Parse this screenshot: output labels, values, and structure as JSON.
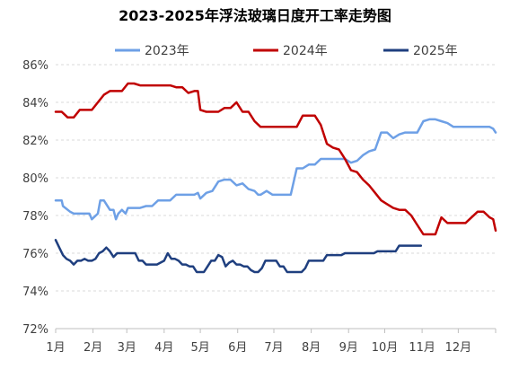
{
  "chart_data": {
    "type": "line",
    "title": "2023-2025年浮法玻璃日度开工率走势图",
    "xlabel": "",
    "ylabel": "",
    "ylim": [
      72,
      86
    ],
    "y_ticks": [
      "72%",
      "74%",
      "76%",
      "78%",
      "80%",
      "82%",
      "84%",
      "86%"
    ],
    "x_ticks": [
      "1月",
      "2月",
      "3月",
      "4月",
      "5月",
      "6月",
      "7月",
      "8月",
      "9月",
      "10月",
      "11月",
      "12月"
    ],
    "x_unit": "day_of_year",
    "x_lim": [
      0,
      365
    ],
    "legend_position": "top",
    "grid": "horizontal-dashed",
    "series": [
      {
        "name": "2023年",
        "color": "#6ea0e6",
        "x": [
          0,
          5,
          6,
          12,
          15,
          20,
          25,
          28,
          30,
          35,
          37,
          40,
          45,
          48,
          50,
          52,
          55,
          58,
          60,
          63,
          65,
          70,
          75,
          80,
          85,
          90,
          95,
          100,
          105,
          110,
          115,
          118,
          120,
          125,
          130,
          135,
          140,
          145,
          150,
          155,
          160,
          165,
          168,
          170,
          175,
          180,
          185,
          190,
          195,
          200,
          205,
          210,
          215,
          220,
          225,
          230,
          235,
          240,
          245,
          250,
          255,
          260,
          265,
          270,
          275,
          280,
          285,
          290,
          295,
          300,
          305,
          310,
          315,
          320,
          325,
          330,
          335,
          340,
          345,
          350,
          355,
          360,
          363,
          365
        ],
        "values": [
          78.8,
          78.8,
          78.5,
          78.2,
          78.1,
          78.1,
          78.1,
          78.1,
          77.8,
          78.1,
          78.8,
          78.8,
          78.3,
          78.3,
          77.8,
          78.1,
          78.3,
          78.1,
          78.4,
          78.4,
          78.4,
          78.4,
          78.5,
          78.5,
          78.8,
          78.8,
          78.8,
          79.1,
          79.1,
          79.1,
          79.1,
          79.2,
          78.9,
          79.2,
          79.3,
          79.8,
          79.9,
          79.9,
          79.6,
          79.7,
          79.4,
          79.3,
          79.1,
          79.1,
          79.3,
          79.1,
          79.1,
          79.1,
          79.1,
          80.5,
          80.5,
          80.7,
          80.7,
          81.0,
          81.0,
          81.0,
          81.0,
          81.0,
          80.8,
          80.9,
          81.2,
          81.4,
          81.5,
          82.4,
          82.4,
          82.1,
          82.3,
          82.4,
          82.4,
          82.4,
          83.0,
          83.1,
          83.1,
          83.0,
          82.9,
          82.7,
          82.7,
          82.7,
          82.7,
          82.7,
          82.7,
          82.7,
          82.6,
          82.4
        ]
      },
      {
        "name": "2024年",
        "color": "#c00000",
        "x": [
          0,
          5,
          10,
          15,
          20,
          25,
          30,
          35,
          40,
          45,
          50,
          55,
          60,
          65,
          70,
          75,
          80,
          85,
          90,
          95,
          100,
          105,
          110,
          115,
          118,
          120,
          125,
          130,
          135,
          140,
          145,
          150,
          155,
          160,
          165,
          170,
          175,
          180,
          185,
          190,
          195,
          200,
          205,
          210,
          215,
          220,
          225,
          230,
          235,
          240,
          245,
          250,
          255,
          260,
          265,
          270,
          275,
          280,
          285,
          290,
          295,
          300,
          305,
          310,
          315,
          320,
          325,
          330,
          335,
          340,
          345,
          350,
          355,
          360,
          363,
          365
        ],
        "values": [
          83.5,
          83.5,
          83.2,
          83.2,
          83.6,
          83.6,
          83.6,
          84.0,
          84.4,
          84.6,
          84.6,
          84.6,
          85.0,
          85.0,
          84.9,
          84.9,
          84.9,
          84.9,
          84.9,
          84.9,
          84.8,
          84.8,
          84.5,
          84.6,
          84.6,
          83.6,
          83.5,
          83.5,
          83.5,
          83.7,
          83.7,
          84.0,
          83.5,
          83.5,
          83.0,
          82.7,
          82.7,
          82.7,
          82.7,
          82.7,
          82.7,
          82.7,
          83.3,
          83.3,
          83.3,
          82.8,
          81.8,
          81.6,
          81.5,
          81.0,
          80.4,
          80.3,
          79.9,
          79.6,
          79.2,
          78.8,
          78.6,
          78.4,
          78.3,
          78.3,
          78.0,
          77.5,
          77.0,
          77.0,
          77.0,
          77.9,
          77.6,
          77.6,
          77.6,
          77.6,
          77.9,
          78.2,
          78.2,
          77.9,
          77.8,
          77.2
        ]
      },
      {
        "name": "2025年",
        "color": "#1f3f7f",
        "x": [
          0,
          3,
          6,
          9,
          12,
          15,
          18,
          21,
          24,
          27,
          30,
          33,
          36,
          39,
          42,
          45,
          48,
          51,
          54,
          57,
          60,
          63,
          66,
          69,
          72,
          75,
          78,
          81,
          84,
          87,
          90,
          93,
          96,
          99,
          102,
          105,
          108,
          111,
          114,
          117,
          120,
          123,
          126,
          129,
          132,
          135,
          138,
          141,
          144,
          147,
          150,
          153,
          156,
          159,
          162,
          165,
          168,
          171,
          174,
          177,
          180,
          183,
          186,
          189,
          192,
          195,
          198,
          201,
          204,
          207,
          210,
          213,
          216,
          219,
          222,
          225,
          228,
          231,
          234,
          237,
          240,
          243,
          246,
          249,
          252,
          255,
          258,
          261,
          264,
          267,
          270,
          273,
          276,
          279,
          282,
          285,
          288,
          291,
          294,
          297,
          300,
          303
        ],
        "values": [
          76.7,
          76.3,
          75.9,
          75.7,
          75.6,
          75.4,
          75.6,
          75.6,
          75.7,
          75.6,
          75.6,
          75.7,
          76.0,
          76.1,
          76.3,
          76.1,
          75.8,
          76.0,
          76.0,
          76.0,
          76.0,
          76.0,
          76.0,
          75.6,
          75.6,
          75.4,
          75.4,
          75.4,
          75.4,
          75.5,
          75.6,
          76.0,
          75.7,
          75.7,
          75.6,
          75.4,
          75.4,
          75.3,
          75.3,
          75.0,
          75.0,
          75.0,
          75.3,
          75.6,
          75.6,
          75.9,
          75.8,
          75.3,
          75.5,
          75.6,
          75.4,
          75.4,
          75.3,
          75.3,
          75.1,
          75.0,
          75.0,
          75.2,
          75.6,
          75.6,
          75.6,
          75.6,
          75.3,
          75.3,
          75.0,
          75.0,
          75.0,
          75.0,
          75.0,
          75.2,
          75.6,
          75.6,
          75.6,
          75.6,
          75.6,
          75.9,
          75.9,
          75.9,
          75.9,
          75.9,
          76.0,
          76.0,
          76.0,
          76.0,
          76.0,
          76.0,
          76.0,
          76.0,
          76.0,
          76.1,
          76.1,
          76.1,
          76.1,
          76.1,
          76.1,
          76.4,
          76.4,
          76.4,
          76.4,
          76.4,
          76.4,
          76.4
        ]
      }
    ]
  }
}
